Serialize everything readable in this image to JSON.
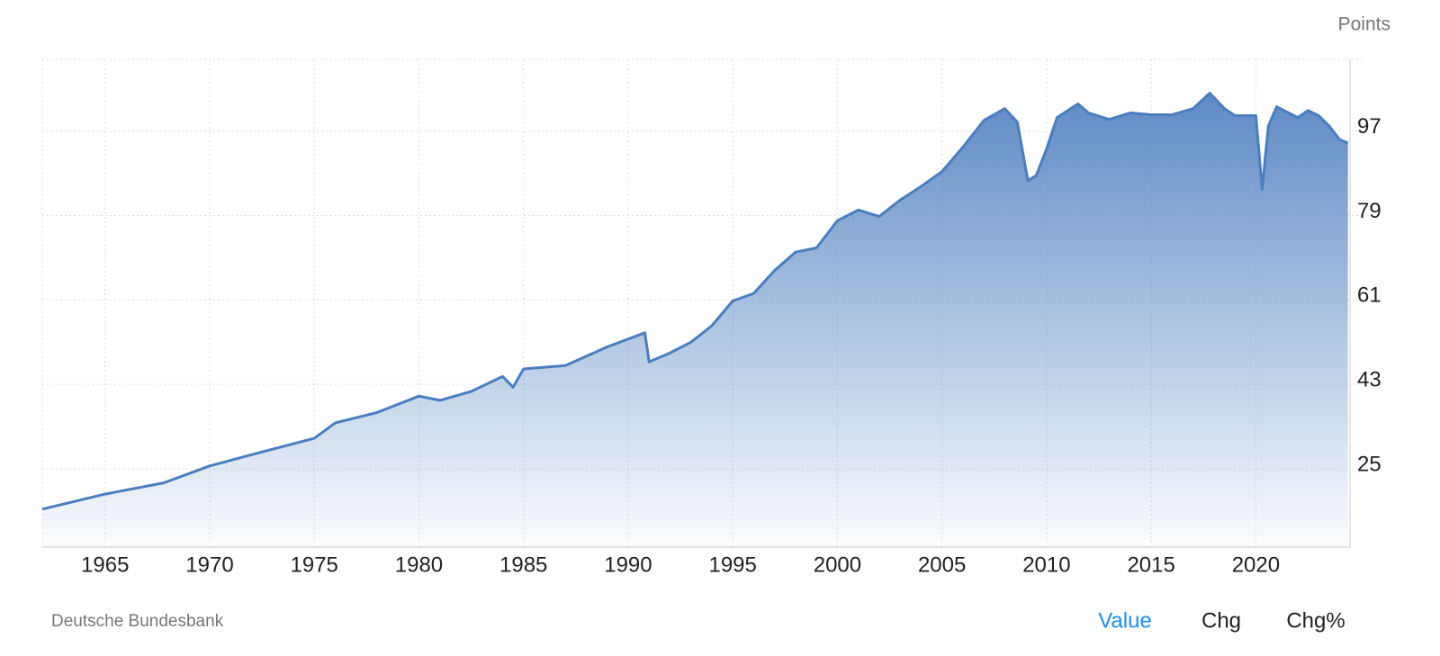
{
  "chart_data": {
    "type": "area",
    "unit_label": "Points",
    "source": "Deutsche Bundesbank",
    "x": [
      1962,
      1965,
      1967.8,
      1970,
      1972,
      1975,
      1976,
      1978,
      1980,
      1981,
      1982.5,
      1984,
      1984.5,
      1985,
      1987,
      1989,
      1990.8,
      1991,
      1992,
      1993,
      1994,
      1995,
      1996,
      1997,
      1998,
      1999,
      2000,
      2001,
      2002,
      2003,
      2004,
      2005,
      2006,
      2007,
      2008,
      2008.6,
      2009.1,
      2009.5,
      2010,
      2010.5,
      2011.5,
      2012,
      2013,
      2014,
      2015,
      2016,
      2017,
      2017.8,
      2018.5,
      2019,
      2020,
      2020.3,
      2020.6,
      2021,
      2022,
      2022.5,
      2023,
      2023.5,
      2024,
      2024.4
    ],
    "series": [
      {
        "color": "#4a7ebf",
        "values": [
          16.4,
          19.6,
          22,
          25.6,
          28,
          31.5,
          34.8,
          37,
          40.5,
          39.6,
          41.5,
          44.7,
          42.4,
          46.3,
          47,
          51,
          54,
          47.8,
          49.7,
          52,
          55.5,
          60.8,
          62.4,
          67.3,
          71.2,
          72.1,
          77.9,
          80.2,
          78.8,
          82.3,
          85.2,
          88.4,
          93.6,
          99.3,
          101.8,
          98.9,
          86.5,
          87.5,
          93.2,
          99.9,
          102.8,
          100.9,
          99.5,
          100.9,
          100.5,
          100.5,
          101.8,
          105.1,
          101.8,
          100.3,
          100.3,
          84.6,
          98.1,
          102.2,
          99.9,
          101.4,
          100.3,
          98.1,
          95.2,
          94.5
        ]
      }
    ],
    "xlim": [
      1962,
      2024.5
    ],
    "xticks": [
      1965,
      1970,
      1975,
      1980,
      1985,
      1990,
      1995,
      2000,
      2005,
      2010,
      2015,
      2020
    ],
    "ylim": [
      8.3,
      112.3
    ],
    "yticks": [
      25,
      43,
      61,
      79,
      97
    ],
    "grid": true,
    "views": [
      {
        "label": "Value",
        "active": true
      },
      {
        "label": "Chg",
        "active": false
      },
      {
        "label": "Chg%",
        "active": false
      }
    ]
  }
}
